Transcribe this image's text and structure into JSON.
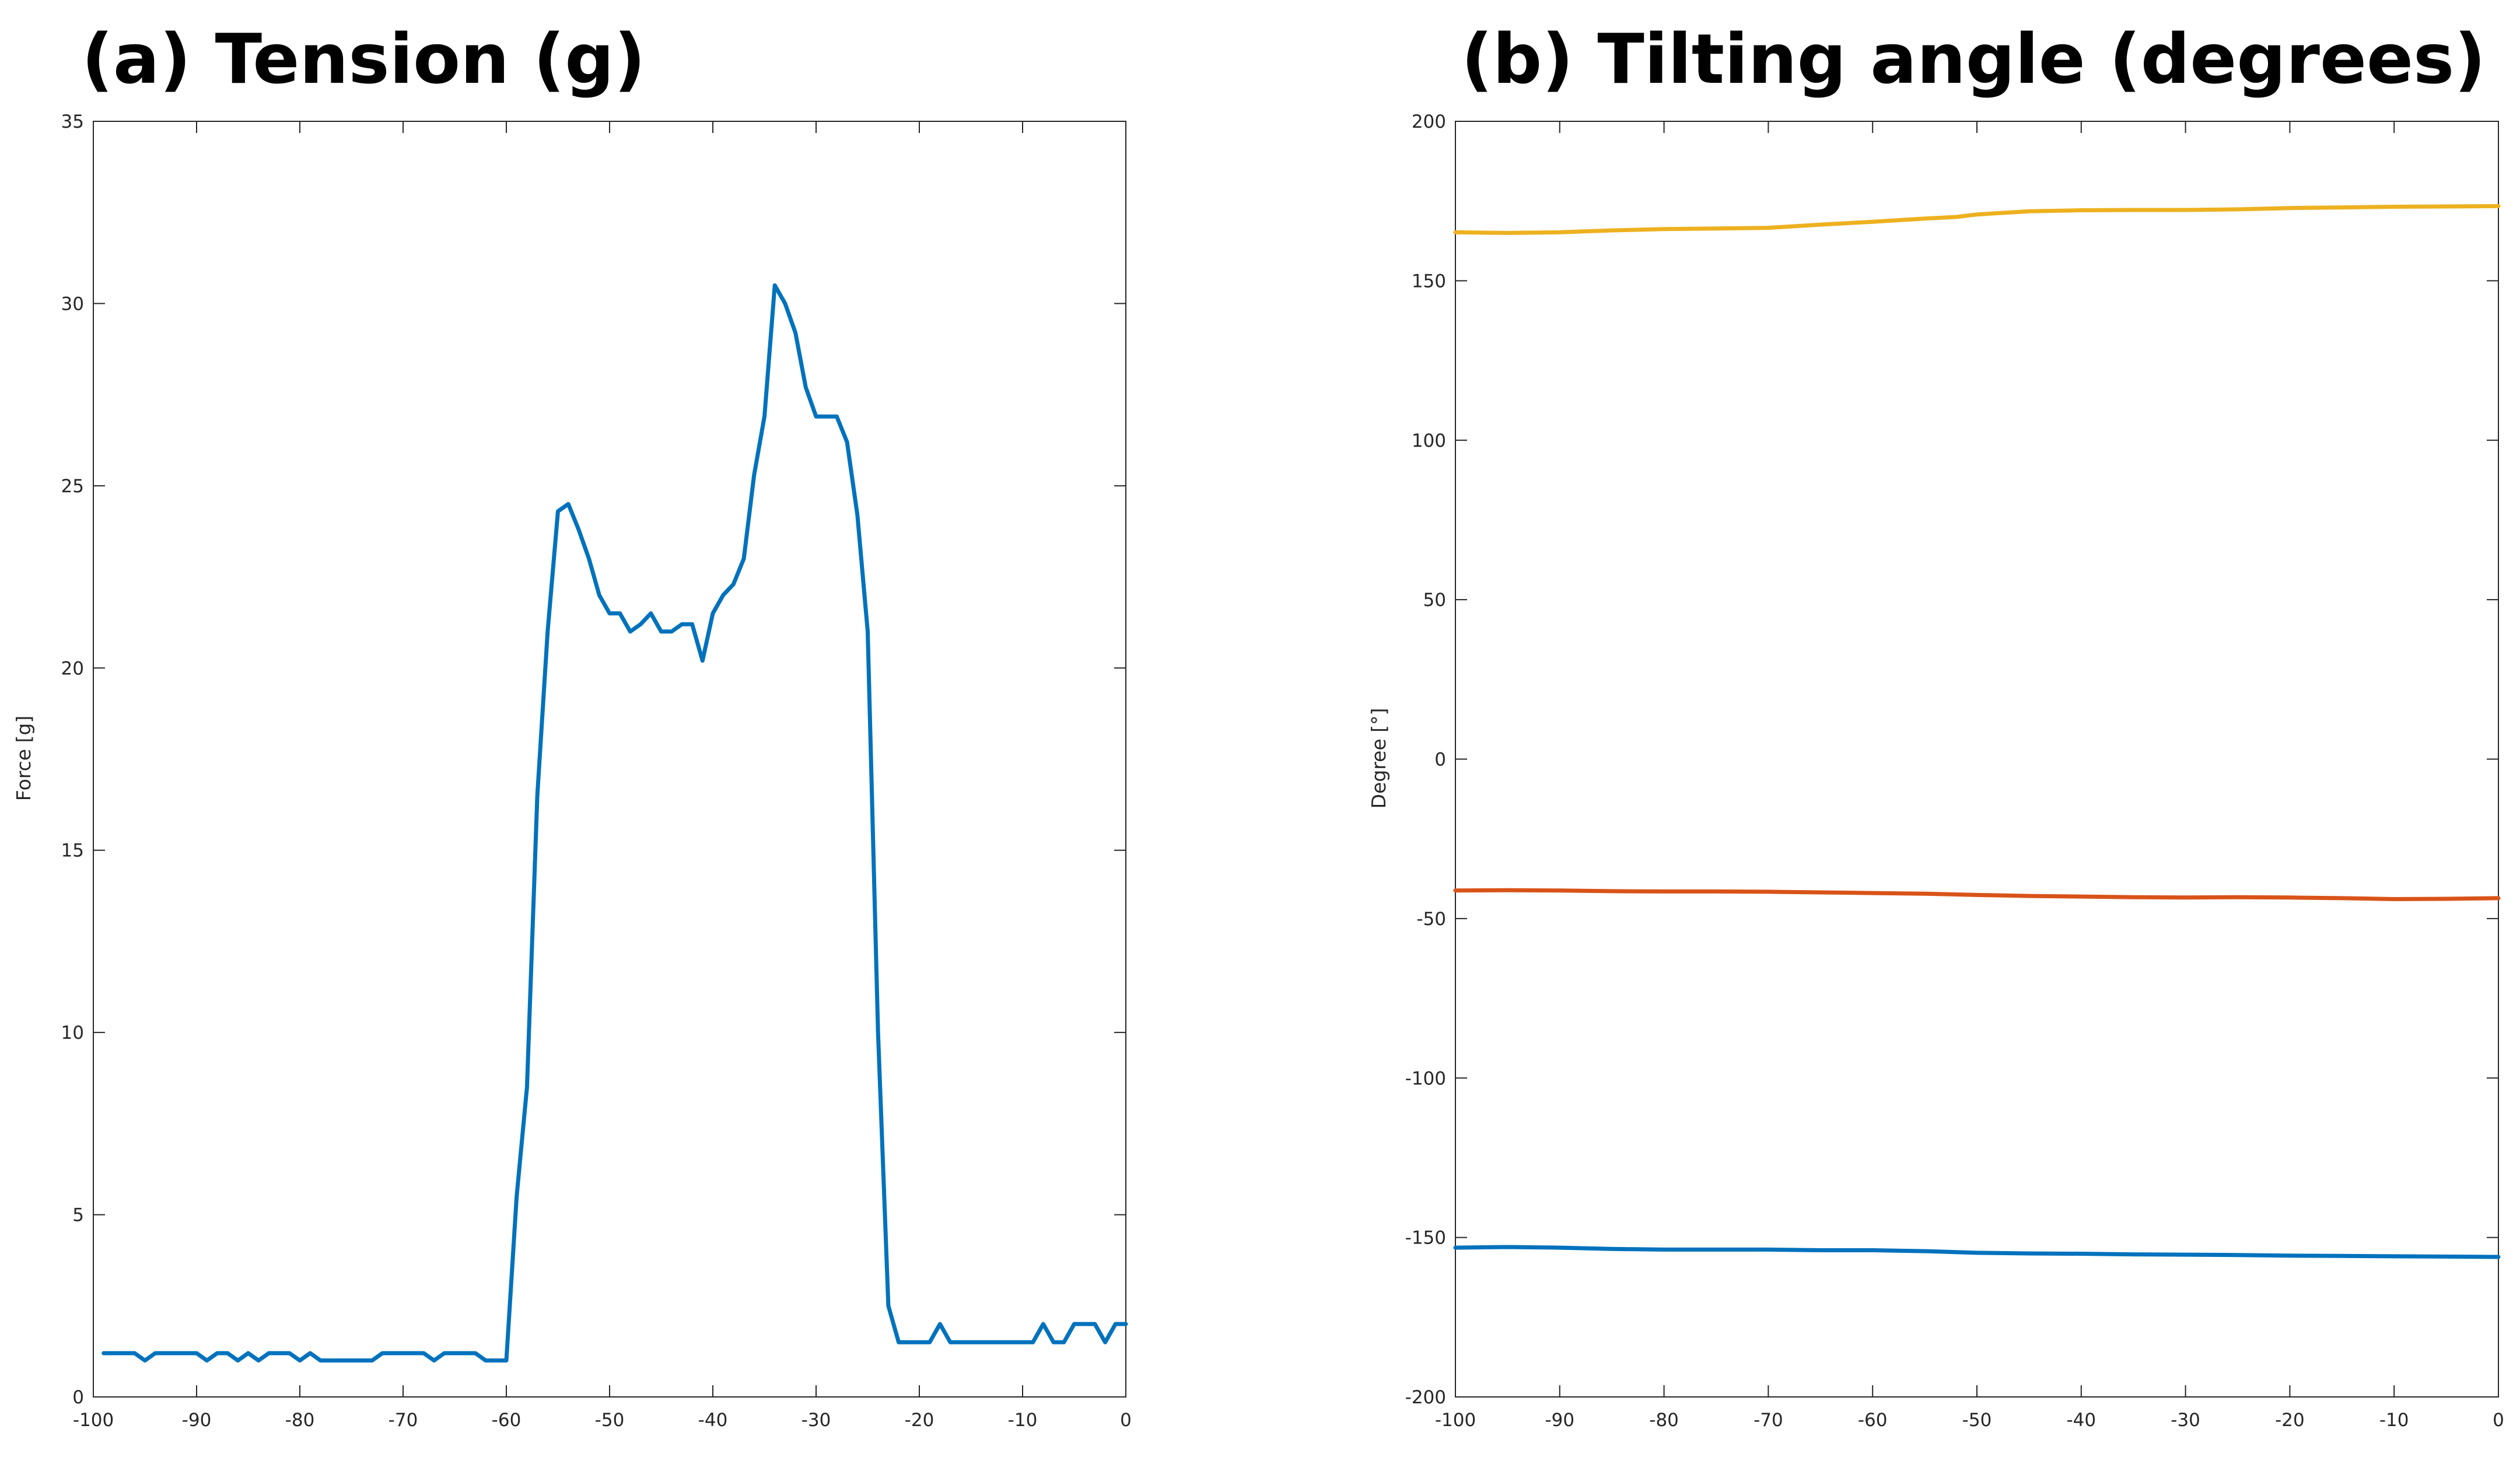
{
  "chart_data": [
    {
      "type": "line",
      "title": "(a) Tension (g)",
      "xlabel": "",
      "ylabel": "Force [g]",
      "xlim": [
        -100,
        0
      ],
      "ylim": [
        0,
        35
      ],
      "xticks": [
        -100,
        -90,
        -80,
        -70,
        -60,
        -50,
        -40,
        -30,
        -20,
        -10,
        0
      ],
      "yticks": [
        0,
        5,
        10,
        15,
        20,
        25,
        30,
        35
      ],
      "grid": false,
      "series": [
        {
          "color": "#0072BD",
          "x": [
            -99,
            -98,
            -97,
            -96,
            -95,
            -94,
            -93,
            -92,
            -91,
            -90,
            -89,
            -88,
            -87,
            -86,
            -85,
            -84,
            -83,
            -82,
            -81,
            -80,
            -79,
            -78,
            -77,
            -76,
            -75,
            -74,
            -73,
            -72,
            -71,
            -70,
            -69,
            -68,
            -67,
            -66,
            -65,
            -64,
            -63,
            -62,
            -61,
            -60,
            -59,
            -58,
            -57,
            -56,
            -55,
            -54,
            -53,
            -52,
            -51,
            -50,
            -49,
            -48,
            -47,
            -46,
            -45,
            -44,
            -43,
            -42,
            -41,
            -40,
            -39,
            -38,
            -37,
            -36,
            -35,
            -34,
            -33,
            -32,
            -31,
            -30,
            -29,
            -28,
            -27,
            -26,
            -25,
            -24,
            -23,
            -22,
            -21,
            -20,
            -19,
            -18,
            -17,
            -16,
            -15,
            -14,
            -13,
            -12,
            -11,
            -10,
            -9,
            -8,
            -7,
            -6,
            -5,
            -4,
            -3,
            -2,
            -1,
            0
          ],
          "y": [
            1.2,
            1.2,
            1.2,
            1.2,
            1.0,
            1.2,
            1.2,
            1.2,
            1.2,
            1.2,
            1.0,
            1.2,
            1.2,
            1.0,
            1.2,
            1.0,
            1.2,
            1.2,
            1.2,
            1.0,
            1.2,
            1.0,
            1.0,
            1.0,
            1.0,
            1.0,
            1.0,
            1.2,
            1.2,
            1.2,
            1.2,
            1.2,
            1.0,
            1.2,
            1.2,
            1.2,
            1.2,
            1.0,
            1.0,
            1.0,
            5.5,
            8.5,
            16.5,
            21.0,
            24.3,
            24.5,
            23.8,
            23.0,
            22.0,
            21.5,
            21.5,
            21.0,
            21.2,
            21.5,
            21.0,
            21.0,
            21.2,
            21.2,
            20.2,
            21.5,
            22.0,
            22.3,
            23.0,
            25.3,
            26.9,
            30.5,
            30.0,
            29.2,
            27.7,
            26.9,
            26.9,
            26.9,
            26.2,
            24.2,
            21.0,
            10.0,
            2.5,
            1.5,
            1.5,
            1.5,
            1.5,
            2.0,
            1.5,
            1.5,
            1.5,
            1.5,
            1.5,
            1.5,
            1.5,
            1.5,
            1.5,
            2.0,
            1.5,
            1.5,
            2.0,
            2.0,
            2.0,
            1.5,
            2.0,
            2.0
          ]
        }
      ]
    },
    {
      "type": "line",
      "title": "(b) Tilting angle (degrees)",
      "xlabel": "",
      "ylabel": "Degree [°]",
      "xlim": [
        -100,
        0
      ],
      "ylim": [
        -200,
        200
      ],
      "xticks": [
        -100,
        -90,
        -80,
        -70,
        -60,
        -50,
        -40,
        -30,
        -20,
        -10,
        0
      ],
      "yticks": [
        -200,
        -150,
        -100,
        -50,
        0,
        50,
        100,
        150,
        200
      ],
      "grid": false,
      "series": [
        {
          "color": "#EDB120",
          "x": [
            -100,
            -95,
            -90,
            -85,
            -80,
            -75,
            -70,
            -65,
            -60,
            -55,
            -52,
            -50,
            -45,
            -40,
            -35,
            -30,
            -25,
            -20,
            -15,
            -10,
            -5,
            0
          ],
          "y": [
            165.2,
            165.0,
            165.2,
            165.8,
            166.2,
            166.4,
            166.6,
            167.6,
            168.5,
            169.5,
            170.0,
            170.8,
            171.8,
            172.1,
            172.2,
            172.2,
            172.4,
            172.8,
            173.0,
            173.2,
            173.3,
            173.4
          ]
        },
        {
          "color": "#D95319",
          "x": [
            -100,
            -95,
            -90,
            -85,
            -80,
            -75,
            -70,
            -65,
            -60,
            -55,
            -50,
            -45,
            -40,
            -35,
            -30,
            -25,
            -20,
            -15,
            -10,
            -5,
            0
          ],
          "y": [
            -41.2,
            -41.1,
            -41.2,
            -41.4,
            -41.5,
            -41.5,
            -41.6,
            -41.8,
            -42.0,
            -42.2,
            -42.6,
            -42.9,
            -43.1,
            -43.3,
            -43.4,
            -43.3,
            -43.4,
            -43.6,
            -43.9,
            -43.8,
            -43.6
          ]
        },
        {
          "color": "#0072BD",
          "x": [
            -100,
            -95,
            -90,
            -85,
            -80,
            -75,
            -70,
            -65,
            -60,
            -55,
            -50,
            -45,
            -40,
            -35,
            -30,
            -25,
            -20,
            -15,
            -10,
            -5,
            0
          ],
          "y": [
            -153.2,
            -153.0,
            -153.2,
            -153.6,
            -153.8,
            -153.8,
            -153.8,
            -154.0,
            -154.0,
            -154.3,
            -154.8,
            -155.0,
            -155.1,
            -155.3,
            -155.4,
            -155.5,
            -155.7,
            -155.8,
            -155.9,
            -156.0,
            -156.1
          ]
        }
      ]
    }
  ]
}
